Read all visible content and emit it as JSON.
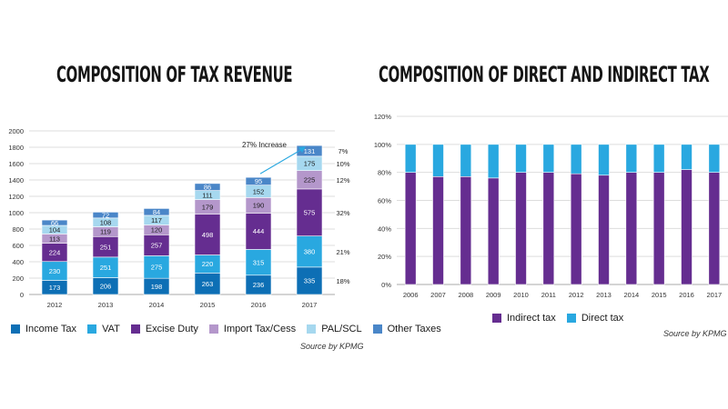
{
  "chart_data": [
    {
      "type": "bar",
      "stacked": true,
      "title": "COMPOSITION OF TAX REVENUE",
      "categories": [
        "2012",
        "2013",
        "2014",
        "2015",
        "2016",
        "2017"
      ],
      "ylim": [
        0,
        2000
      ],
      "yticks": [
        "0",
        "200",
        "400",
        "600",
        "800",
        "1000",
        "1200",
        "1400",
        "1600",
        "1800",
        "2000"
      ],
      "grid": true,
      "legend_position": "bottom",
      "series": [
        {
          "name": "Income Tax",
          "color": "#0d6fb5",
          "values": [
            173,
            206,
            198,
            263,
            236,
            335
          ]
        },
        {
          "name": "VAT",
          "color": "#29a8e0",
          "values": [
            230,
            251,
            275,
            220,
            315,
            380
          ]
        },
        {
          "name": "Excise Duty",
          "color": "#652d90",
          "values": [
            224,
            251,
            257,
            498,
            444,
            575
          ]
        },
        {
          "name": "Import Tax/Cess",
          "color": "#b497cb",
          "values": [
            113,
            119,
            120,
            179,
            190,
            225
          ]
        },
        {
          "name": "PAL/SCL",
          "color": "#a6d8ef",
          "values": [
            104,
            108,
            117,
            111,
            152,
            175
          ]
        },
        {
          "name": "Other Taxes",
          "color": "#4a86c8",
          "values": [
            66,
            72,
            84,
            86,
            95,
            131
          ]
        }
      ],
      "percent_labels": [
        "18%",
        "21%",
        "32%",
        "12%",
        "10%",
        "7%"
      ],
      "annotation": "27% Increase",
      "source": "Source by KPMG"
    },
    {
      "type": "bar",
      "stacked": true,
      "title": "COMPOSITION OF DIRECT AND INDIRECT TAX",
      "categories": [
        "2006",
        "2007",
        "2008",
        "2009",
        "2010",
        "2011",
        "2012",
        "2013",
        "2014",
        "2015",
        "2016",
        "2017"
      ],
      "ylim": [
        0,
        120
      ],
      "yticks": [
        "0%",
        "20%",
        "40%",
        "60%",
        "80%",
        "100%",
        "120%"
      ],
      "grid": true,
      "legend_position": "bottom",
      "series": [
        {
          "name": "Indirect tax",
          "color": "#652d90",
          "values": [
            80,
            77,
            77,
            76,
            80,
            80,
            79,
            78,
            80,
            80,
            82,
            80
          ]
        },
        {
          "name": "Direct tax",
          "color": "#29a8e0",
          "values": [
            20,
            23,
            23,
            24,
            20,
            20,
            21,
            22,
            20,
            20,
            18,
            20
          ]
        }
      ],
      "source": "Source by KPMG"
    }
  ]
}
